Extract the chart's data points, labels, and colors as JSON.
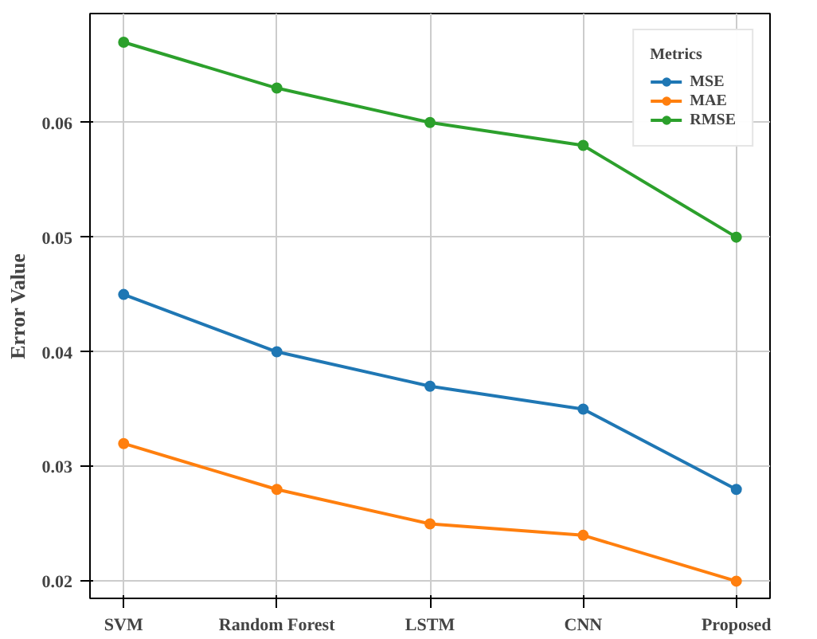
{
  "chart_data": {
    "type": "line",
    "ylabel": "Error Value",
    "legend_title": "Metrics",
    "categories": [
      "SVM",
      "Random Forest",
      "LSTM",
      "CNN",
      "Proposed"
    ],
    "series": [
      {
        "name": "MSE",
        "color": "#1f77b4",
        "values": [
          0.045,
          0.04,
          0.037,
          0.035,
          0.028
        ]
      },
      {
        "name": "MAE",
        "color": "#ff7f0e",
        "values": [
          0.032,
          0.028,
          0.025,
          0.024,
          0.02
        ]
      },
      {
        "name": "RMSE",
        "color": "#2ca02c",
        "values": [
          0.067,
          0.063,
          0.06,
          0.058,
          0.05
        ]
      }
    ],
    "ylim": [
      0.0185,
      0.0695
    ],
    "yticks": [
      0.02,
      0.03,
      0.04,
      0.05,
      0.06
    ],
    "grid": true,
    "legend": "top right",
    "marker": "circle",
    "line_style": "solid"
  }
}
